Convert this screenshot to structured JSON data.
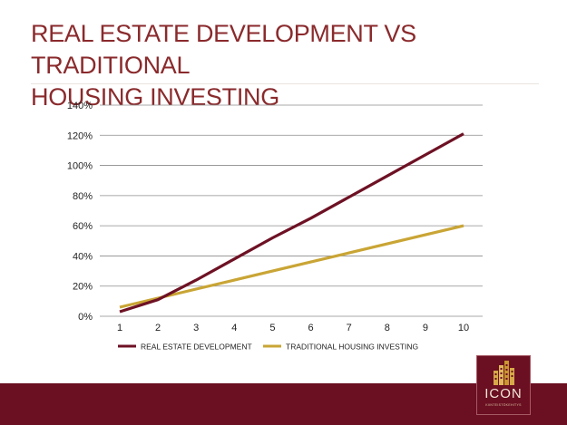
{
  "slide": {
    "title_line1": "REAL ESTATE DEVELOPMENT VS TRADITIONAL",
    "title_line2": "HOUSING INVESTING"
  },
  "logo": {
    "wordmark": "ICON",
    "tagline": "KIINTEISTÖKEHITYS"
  },
  "colors": {
    "title": "#8a2a2c",
    "footer": "#6b0f22",
    "series_development": "#6e1124",
    "series_traditional": "#c9a535",
    "grid": "#8c8c8c"
  },
  "chart_data": {
    "type": "line",
    "title": "",
    "xlabel": "",
    "ylabel": "",
    "x": [
      1,
      2,
      3,
      4,
      5,
      6,
      7,
      8,
      9,
      10
    ],
    "x_tick_labels": [
      "1",
      "2",
      "3",
      "4",
      "5",
      "6",
      "7",
      "8",
      "9",
      "10"
    ],
    "y_tick_labels": [
      "0%",
      "20%",
      "40%",
      "60%",
      "80%",
      "100%",
      "120%",
      "140%"
    ],
    "y_ticks": [
      0,
      20,
      40,
      60,
      80,
      100,
      120,
      140
    ],
    "ylim": [
      0,
      140
    ],
    "y_unit": "%",
    "grid": "horizontal",
    "legend_position": "bottom",
    "series": [
      {
        "name": "REAL ESTATE DEVELOPMENT",
        "color": "#6e1124",
        "values": [
          3,
          11,
          24,
          38,
          52,
          65,
          79,
          93,
          107,
          121
        ]
      },
      {
        "name": "TRADITIONAL HOUSING INVESTING",
        "color": "#c9a535",
        "values": [
          6,
          12,
          18,
          24,
          30,
          36,
          42,
          48,
          54,
          60
        ]
      }
    ]
  }
}
